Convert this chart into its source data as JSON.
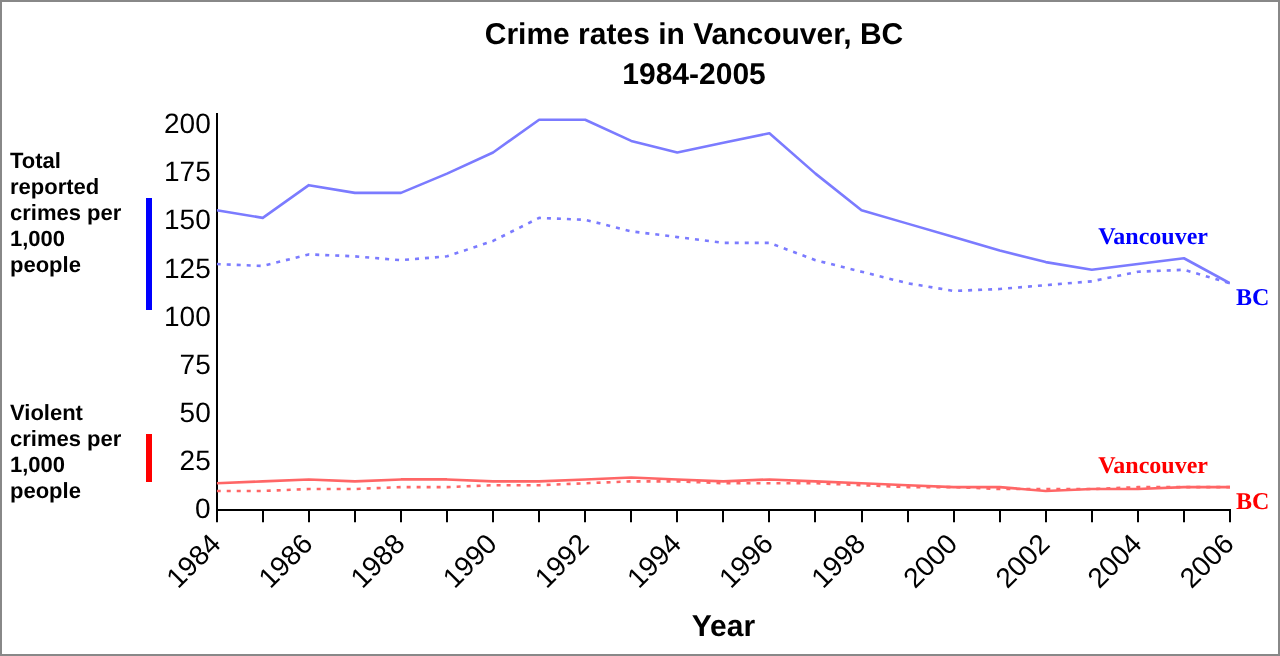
{
  "chart_data": {
    "type": "line",
    "title": "Crime rates in Vancouver, BC",
    "subtitle": "1984-2005",
    "xlabel": "Year",
    "ylabel": "Total reported crimes per 1,000 people",
    "annotations": [
      "Violent crimes per 1,000 people"
    ],
    "x": [
      1984,
      1985,
      1986,
      1987,
      1988,
      1989,
      1990,
      1991,
      1992,
      1993,
      1994,
      1995,
      1996,
      1997,
      1998,
      1999,
      2000,
      2001,
      2002,
      2003,
      2004,
      2005,
      2006
    ],
    "series": [
      {
        "name": "Vancouver",
        "color": "#7b7bff",
        "line_style": "solid",
        "values": [
          156,
          152,
          169,
          165,
          165,
          175,
          186,
          203,
          203,
          192,
          186,
          191,
          196,
          175,
          156,
          149,
          142,
          135,
          129,
          125,
          128,
          131,
          118
        ]
      },
      {
        "name": "BC",
        "color": "#7b7bff",
        "line_style": "dotted",
        "values": [
          128,
          127,
          133,
          132,
          130,
          132,
          140,
          152,
          151,
          145,
          142,
          139,
          139,
          130,
          124,
          118,
          114,
          115,
          117,
          119,
          124,
          125,
          118
        ]
      },
      {
        "name": "Vancouver",
        "color": "#ff6666",
        "line_style": "solid",
        "values": [
          14,
          15,
          16,
          15,
          16,
          16,
          15,
          15,
          16,
          17,
          16,
          15,
          16,
          15,
          14,
          13,
          12,
          12,
          10,
          11,
          11,
          12,
          12
        ]
      },
      {
        "name": "BC",
        "color": "#ff6666",
        "line_style": "dotted",
        "values": [
          10,
          10,
          11,
          11,
          12,
          12,
          13,
          13,
          14,
          15,
          15,
          14,
          14,
          14,
          13,
          12,
          12,
          11,
          11,
          11,
          12,
          12,
          12
        ]
      }
    ],
    "xlim": [
      1984,
      2006
    ],
    "xticks": [
      1984,
      {
        "value": 1985,
        "label": null
      },
      1986,
      {
        "value": 1987,
        "label": null
      },
      1988,
      {
        "value": 1989,
        "label": null
      },
      1990,
      {
        "value": 1991,
        "label": null
      },
      1992,
      {
        "value": 1993,
        "label": null
      },
      1994,
      {
        "value": 1995,
        "label": null
      },
      1996,
      {
        "value": 1997,
        "label": null
      },
      1998,
      {
        "value": 1999,
        "label": null
      },
      2000,
      {
        "value": 2001,
        "label": null
      },
      2002,
      {
        "value": 2003,
        "label": null
      },
      2004,
      {
        "value": 2005,
        "label": null
      },
      2006
    ],
    "ylim": [
      0,
      206
    ],
    "yticks": [
      0,
      25,
      50,
      75,
      100,
      125,
      150,
      175,
      200
    ],
    "grid": false,
    "legend": false,
    "marker": "none"
  }
}
